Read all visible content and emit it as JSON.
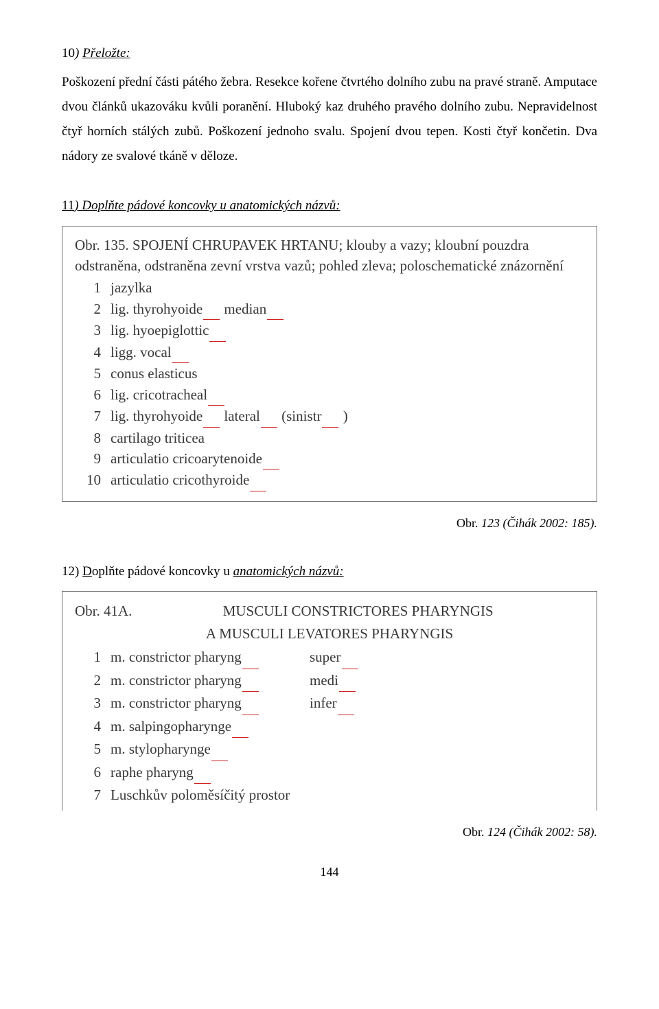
{
  "ex10": {
    "num": "10",
    "paren": ")",
    "title": "Přeložte:",
    "body": "Poškození přední části pátého žebra. Resekce kořene čtvrtého dolního zubu na pravé straně. Amputace dvou článků ukazováku kvůli poranění. Hluboký kaz druhého pravého dolního zubu. Nepravidelnost čtyř horních stálých zubů. Poškození jednoho svalu. Spojení dvou tepen. Kosti čtyř končetin. Dva nádory ze svalové tkáně v děloze."
  },
  "ex11": {
    "num": "11",
    "paren": ")",
    "title": "Doplňte pádové koncovky u anatomických názvů:"
  },
  "fig1": {
    "caption_obr": "Obr. 135.",
    "caption_title": "SPOJENÍ CHRUPAVEK HRTANU; klouby a vazy; kloubní pouzdra odstraněna, odstraněna zevní vrstva vazů; pohled zleva; poloschematické znázornění",
    "items": [
      {
        "n": "1",
        "t": "jazylka"
      },
      {
        "n": "2",
        "t": "lig. thyrohyoide__   median__"
      },
      {
        "n": "3",
        "t": "lig. hyoepiglottic__"
      },
      {
        "n": "4",
        "t": "ligg. vocal__"
      },
      {
        "n": "5",
        "t": "conus elasticus"
      },
      {
        "n": "6",
        "t": "lig. cricotracheal__"
      },
      {
        "n": "7",
        "t": "lig. thyrohyoide__    lateral__  (sinistr__ )"
      },
      {
        "n": "8",
        "t": "cartilago triticea"
      },
      {
        "n": "9",
        "t": "articulatio cricoarytenoide__"
      },
      {
        "n": "10",
        "t": "articulatio cricothyroide__"
      }
    ],
    "cite_lbl": "Obr. ",
    "cite": "123 (Čihák 2002: 185)."
  },
  "ex12": {
    "num": "12) ",
    "title_a": "D",
    "title_b": "oplňte pádové koncovky u ",
    "title_c": "anatomických názvů:"
  },
  "fig2": {
    "caption_obr": "Obr. 41A.",
    "title_line1": "MUSCULI CONSTRICTORES PHARYNGIS",
    "title_line2": "A MUSCULI LEVATORES PHARYNGIS",
    "items": [
      {
        "n": "1",
        "a": "m. constrictor pharyng__",
        "b": "super__"
      },
      {
        "n": "2",
        "a": "m. constrictor pharyng__",
        "b": "medi__"
      },
      {
        "n": "3",
        "a": "m. constrictor pharyng__",
        "b": "infer__"
      },
      {
        "n": "4",
        "a": "m. salpingopharynge__",
        "b": ""
      },
      {
        "n": "5",
        "a": "m. stylopharynge__",
        "b": ""
      },
      {
        "n": "6",
        "a": "raphe pharyng__",
        "b": ""
      },
      {
        "n": "7",
        "a": "Luschkův poloměsíčitý prostor",
        "b": ""
      }
    ],
    "cite_lbl": "Obr. ",
    "cite": "124 (Čihák 2002: 58)."
  },
  "page": "144"
}
